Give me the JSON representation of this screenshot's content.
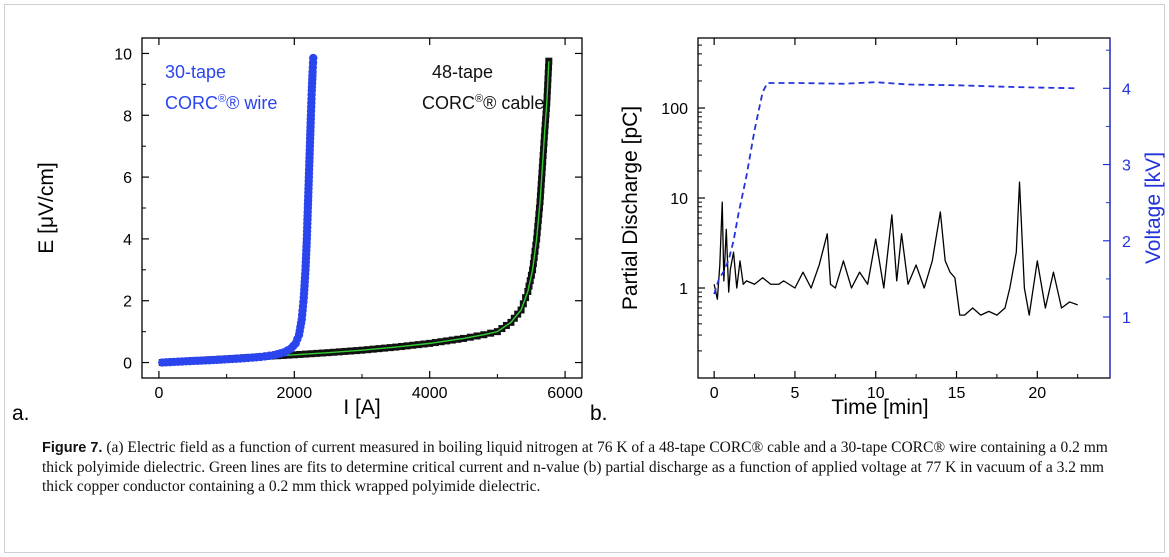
{
  "chart_data": [
    {
      "type": "scatter",
      "panel_label": "a.",
      "xlabel": "I [A]",
      "ylabel": "E [μV/cm]",
      "xlim": [
        -250,
        6250
      ],
      "ylim": [
        -0.5,
        10.5
      ],
      "xticks": [
        "0",
        "2000",
        "4000",
        "6000"
      ],
      "yticks": [
        "0",
        "2",
        "4",
        "6",
        "8",
        "10"
      ],
      "series": [
        {
          "name_lines": [
            "48-tape",
            "CORC® cable"
          ],
          "color": "#111111",
          "fit_color": "#33cc33",
          "x": [
            50,
            500,
            1000,
            1500,
            2000,
            2500,
            3000,
            3500,
            4000,
            4500,
            4800,
            5000,
            5200,
            5350,
            5450,
            5520,
            5580,
            5630,
            5670,
            5700,
            5730,
            5760
          ],
          "y": [
            0.0,
            0.06,
            0.12,
            0.19,
            0.25,
            0.32,
            0.4,
            0.5,
            0.62,
            0.78,
            0.9,
            1.0,
            1.3,
            1.7,
            2.3,
            3.0,
            4.0,
            5.2,
            6.5,
            7.5,
            8.4,
            9.75
          ]
        },
        {
          "name_lines": [
            "30-tape",
            "CORC® wire"
          ],
          "color": "#2a44ee",
          "x": [
            50,
            400,
            800,
            1200,
            1500,
            1700,
            1850,
            1950,
            2020,
            2070,
            2110,
            2140,
            2165,
            2185,
            2200,
            2215,
            2230,
            2245,
            2258,
            2270,
            2280
          ],
          "y": [
            0.0,
            0.04,
            0.08,
            0.13,
            0.18,
            0.24,
            0.33,
            0.45,
            0.62,
            0.9,
            1.4,
            2.1,
            3.0,
            4.0,
            5.0,
            6.0,
            7.0,
            8.0,
            8.8,
            9.4,
            9.85
          ]
        }
      ]
    },
    {
      "type": "line",
      "panel_label": "b.",
      "xlabel": "Time [min]",
      "ylabel": "Partial Discharge [pC]",
      "y2label": "Voltage [kV]",
      "y_scale": "log",
      "xlim": [
        -1,
        24.5
      ],
      "ylim": [
        0.1,
        600
      ],
      "y2lim": [
        0.2,
        4.66
      ],
      "xticks": [
        "0",
        "5",
        "10",
        "15",
        "20"
      ],
      "yticks": [
        "1",
        "10",
        "100"
      ],
      "y2ticks": [
        "1",
        "2",
        "3",
        "4"
      ],
      "series": [
        {
          "name": "Partial Discharge",
          "color": "#000000",
          "x": [
            0,
            0.2,
            0.35,
            0.5,
            0.6,
            0.75,
            0.9,
            1.0,
            1.2,
            1.4,
            1.6,
            1.8,
            2.0,
            2.5,
            3.0,
            3.5,
            4.0,
            4.3,
            5.0,
            5.5,
            6.0,
            6.5,
            7.0,
            7.2,
            7.5,
            8.0,
            8.5,
            9.0,
            9.5,
            10.0,
            10.5,
            11.0,
            11.3,
            11.6,
            12.0,
            12.5,
            13.0,
            13.5,
            14.0,
            14.3,
            14.6,
            14.9,
            15.2,
            15.5,
            16.0,
            16.5,
            17.0,
            17.5,
            18.0,
            18.3,
            18.7,
            18.9,
            19.2,
            19.5,
            20.0,
            20.5,
            21.0,
            21.5,
            22.0,
            22.5
          ],
          "y": [
            1.1,
            0.75,
            1.8,
            9.0,
            1.2,
            4.5,
            0.9,
            1.6,
            2.5,
            1.0,
            2.0,
            1.1,
            1.2,
            1.1,
            1.3,
            1.1,
            1.1,
            1.2,
            1.0,
            1.5,
            1.0,
            1.8,
            4.0,
            1.1,
            1.0,
            2.0,
            1.0,
            1.5,
            1.1,
            3.5,
            1.0,
            6.5,
            1.2,
            4.0,
            1.1,
            1.8,
            1.0,
            2.0,
            7.0,
            2.0,
            1.5,
            1.3,
            0.5,
            0.5,
            0.6,
            0.5,
            0.55,
            0.5,
            0.6,
            1.0,
            2.5,
            15.0,
            1.0,
            0.5,
            2.0,
            0.6,
            1.5,
            0.6,
            0.7,
            0.65
          ]
        },
        {
          "name": "Voltage",
          "axis": "right",
          "style": "dashed",
          "color": "#2233dd",
          "x": [
            0,
            0.3,
            0.6,
            0.9,
            1.2,
            1.5,
            2.0,
            2.5,
            3.0,
            3.3,
            3.8,
            5.0,
            8.0,
            10.0,
            12.0,
            15.0,
            18.0,
            20.0,
            22.5
          ],
          "y": [
            1.3,
            1.5,
            1.6,
            1.75,
            2.0,
            2.35,
            2.85,
            3.45,
            3.95,
            4.07,
            4.07,
            4.07,
            4.06,
            4.08,
            4.05,
            4.04,
            4.02,
            4.01,
            4.0
          ]
        }
      ]
    }
  ],
  "panel_a": {
    "label": "a.",
    "legend_wire": [
      "30-tape",
      "CORC",
      "® wire"
    ],
    "legend_cable": [
      "48-tape",
      "CORC",
      "® cable"
    ]
  },
  "panel_b": {
    "label": "b."
  },
  "caption": {
    "label": "Figure 7.",
    "text": " (a) Electric field as a function of current measured in boiling liquid nitrogen at 76 K of a 48-tape CORC® cable and a 30-tape CORC® wire containing a 0.2 mm thick polyimide dielectric. Green lines are fits to determine critical current and n-value (b) partial discharge as a function of applied voltage at 77 K in vacuum of a 3.2 mm thick copper conductor containing a 0.2 mm thick wrapped polyimide dielectric."
  }
}
